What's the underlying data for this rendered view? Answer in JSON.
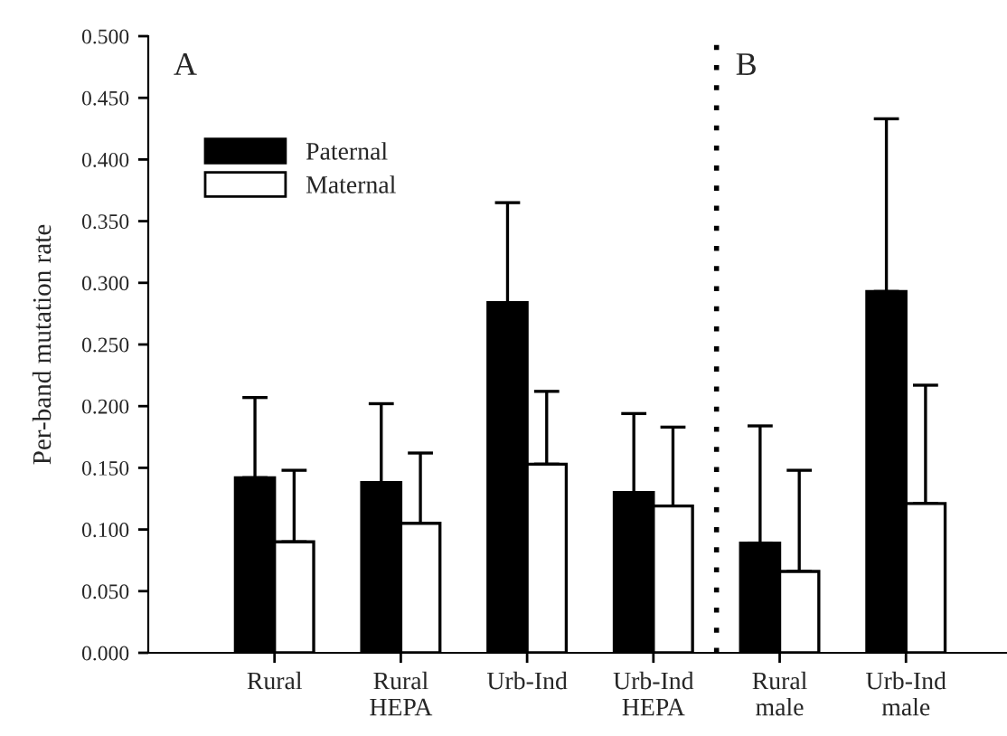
{
  "chart_data": {
    "type": "bar",
    "ylabel": "Per-band mutation rate",
    "categories": [
      "Rural",
      "Rural\nHEPA",
      "Urb-Ind",
      "Urb-Ind\nHEPA",
      "Rural\nmale",
      "Urb-Ind\nmale"
    ],
    "series": [
      {
        "name": "Paternal",
        "color": "#000000",
        "values": [
          0.142,
          0.138,
          0.284,
          0.13,
          0.089,
          0.293
        ],
        "errors": [
          [
            0.142,
            0.207
          ],
          [
            0.138,
            0.202
          ],
          [
            0.284,
            0.365
          ],
          [
            0.13,
            0.194
          ],
          [
            0.089,
            0.184
          ],
          [
            0.293,
            0.433
          ]
        ]
      },
      {
        "name": "Maternal",
        "color": "#ffffff",
        "values": [
          0.09,
          0.105,
          0.153,
          0.119,
          0.066,
          0.121
        ],
        "errors": [
          [
            0.09,
            0.148
          ],
          [
            0.105,
            0.162
          ],
          [
            0.153,
            0.212
          ],
          [
            0.119,
            0.183
          ],
          [
            0.066,
            0.148
          ],
          [
            0.121,
            0.217
          ]
        ]
      }
    ],
    "ylim": [
      0,
      0.5
    ],
    "yticks": [
      {
        "value": 0,
        "label": "0.000"
      },
      {
        "value": 0.05,
        "label": "0.050"
      },
      {
        "value": 0.1,
        "label": "0.100"
      },
      {
        "value": 0.15,
        "label": "0.150"
      },
      {
        "value": 0.2,
        "label": "0.200"
      },
      {
        "value": 0.25,
        "label": "0.250"
      },
      {
        "value": 0.3,
        "label": "0.300"
      },
      {
        "value": 0.35,
        "label": "0.350"
      },
      {
        "value": 0.4,
        "label": "0.400"
      },
      {
        "value": 0.45,
        "label": "0.450"
      },
      {
        "value": 0.5,
        "label": "0.500"
      }
    ],
    "annotations": [
      "A",
      "B"
    ],
    "legend": "top left",
    "grid": false
  }
}
